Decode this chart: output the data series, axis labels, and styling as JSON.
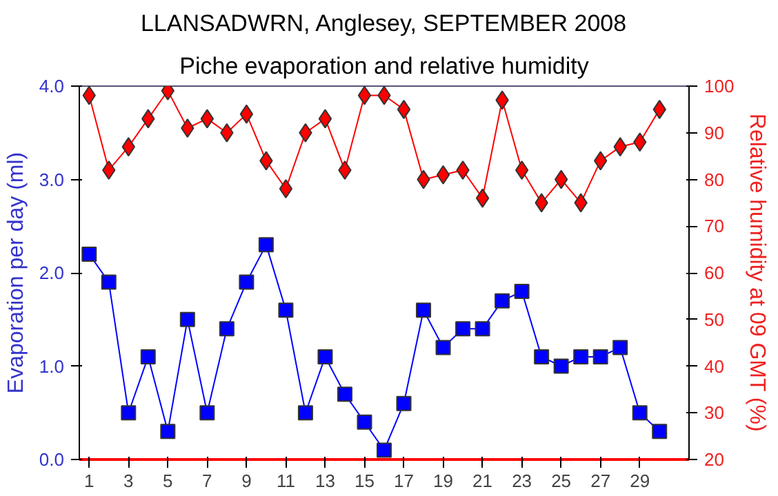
{
  "chart_data": {
    "type": "line",
    "title": "LLANSADWRN, Anglesey, SEPTEMBER 2008",
    "subtitle": "Piche evaporation and relative humidity",
    "ylabel": "Evaporation per day (ml)",
    "y2label": "Relative humidity at 09 GMT (%)",
    "x": [
      1,
      2,
      3,
      4,
      5,
      6,
      7,
      8,
      9,
      10,
      11,
      12,
      13,
      14,
      15,
      16,
      17,
      18,
      19,
      20,
      21,
      22,
      23,
      24,
      25,
      26,
      27,
      28,
      29,
      30
    ],
    "xlim": [
      0.5,
      31.5
    ],
    "xticks": [
      1,
      3,
      5,
      7,
      9,
      11,
      13,
      15,
      17,
      19,
      21,
      23,
      25,
      27,
      29
    ],
    "ylim": [
      0,
      4
    ],
    "yticks": [
      {
        "value": 0,
        "label": "0.0"
      },
      {
        "value": 1,
        "label": "1.0"
      },
      {
        "value": 2,
        "label": "2.0"
      },
      {
        "value": 3,
        "label": "3.0"
      },
      {
        "value": 4,
        "label": "4.0"
      }
    ],
    "y2lim": [
      20,
      100
    ],
    "y2ticks": [
      20,
      30,
      40,
      50,
      60,
      70,
      80,
      90,
      100
    ],
    "grid": false,
    "series": [
      {
        "color": "#0000ff",
        "marker": "square",
        "values": [
          2.2,
          1.9,
          0.5,
          1.1,
          0.3,
          1.5,
          0.5,
          1.4,
          1.9,
          2.3,
          1.6,
          0.5,
          1.1,
          0.7,
          0.4,
          0.1,
          0.6,
          1.6,
          1.2,
          1.4,
          1.4,
          1.7,
          1.8,
          1.1,
          1.0,
          1.1,
          1.1,
          1.2,
          0.5,
          0.3
        ]
      },
      {
        "color": "#ff0000",
        "marker": "diamond",
        "axis": "y2",
        "values": [
          98,
          82,
          87,
          93,
          99,
          91,
          93,
          90,
          94,
          84,
          78,
          90,
          93,
          82,
          98,
          98,
          95,
          80,
          81,
          82,
          76,
          97,
          82,
          75,
          80,
          75,
          84,
          87,
          88,
          95
        ]
      }
    ]
  }
}
